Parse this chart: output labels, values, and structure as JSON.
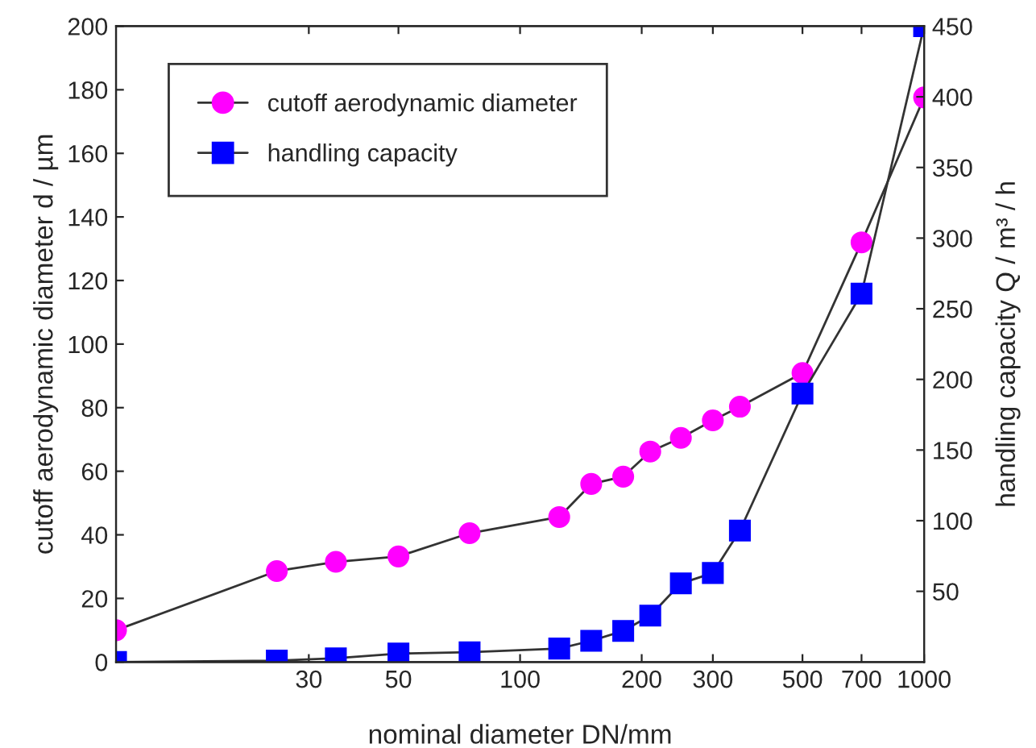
{
  "chart_data": {
    "type": "line",
    "xlabel": "nominal diameter DN/mm",
    "ylabel": "cutoff aerodynamic diameter d / µm",
    "y2label": "handling capacity Q / m³ / h",
    "x": [
      10,
      25,
      35,
      50,
      75,
      125,
      150,
      180,
      210,
      250,
      300,
      350,
      500,
      700,
      1000
    ],
    "series": [
      {
        "name": "cutoff aerodynamic diameter",
        "color": "#ff00ff",
        "marker": "circle",
        "values": [
          10,
          28.6,
          31.5,
          33.2,
          40.5,
          45.6,
          56,
          58.3,
          66.2,
          70.5,
          76,
          80.3,
          90.9,
          132,
          177.6
        ]
      },
      {
        "name": "handling capacity",
        "color": "#0000ff",
        "marker": "square",
        "axis": "y2",
        "values": [
          0,
          1,
          2.6,
          6,
          6.9,
          9.5,
          15,
          22,
          32.8,
          55.6,
          63,
          93,
          190,
          260.7,
          450
        ]
      }
    ],
    "log": "x",
    "xlim": [
      10,
      1000
    ],
    "xticks": [
      30,
      50,
      100,
      200,
      300,
      500,
      700,
      1000
    ],
    "ylim": [
      0,
      200
    ],
    "yticks": [
      0,
      20,
      40,
      60,
      80,
      100,
      120,
      140,
      160,
      180,
      200
    ],
    "y2lim": [
      0,
      450
    ],
    "y2ticks": [
      50,
      100,
      150,
      200,
      250,
      300,
      350,
      400,
      450
    ],
    "grid": false,
    "legend": "top left"
  }
}
